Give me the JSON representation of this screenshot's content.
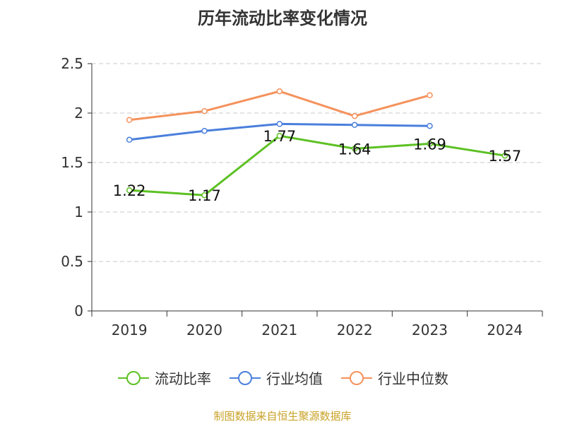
{
  "chart_data": {
    "type": "line",
    "title": "历年流动比率变化情况",
    "categories": [
      "2019",
      "2020",
      "2021",
      "2022",
      "2023",
      "2024"
    ],
    "ylim": [
      0,
      2.5
    ],
    "yticks": [
      "0",
      "0.5",
      "1",
      "1.5",
      "2",
      "2.5"
    ],
    "grid": true,
    "legend_position": "bottom",
    "series": [
      {
        "name": "流动比率",
        "color": "#5cc123",
        "values": [
          1.22,
          1.17,
          1.77,
          1.64,
          1.69,
          1.57
        ],
        "labels": [
          "1.22",
          "1.17",
          "1.77",
          "1.64",
          "1.69",
          "1.57"
        ]
      },
      {
        "name": "行业均值",
        "color": "#4a7fdc",
        "values": [
          1.73,
          1.82,
          1.89,
          1.88,
          1.87,
          null
        ]
      },
      {
        "name": "行业中位数",
        "color": "#f4925c",
        "values": [
          1.93,
          2.02,
          2.22,
          1.97,
          2.18,
          null
        ]
      }
    ]
  },
  "source_note": "制图数据来自恒生聚源数据库"
}
